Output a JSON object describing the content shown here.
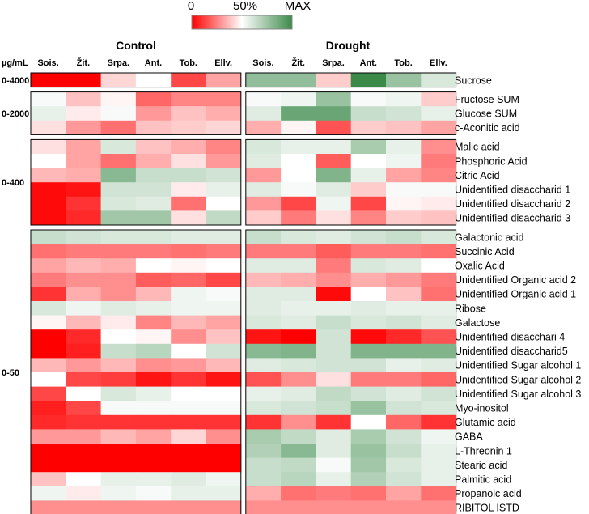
{
  "chart_data": {
    "type": "heatmap",
    "legend": {
      "labels": [
        "0",
        "50%",
        "MAX"
      ],
      "colors": [
        "#ff0000",
        "#ffffff",
        "#3b8a4a"
      ]
    },
    "unit_label": "µg/mL",
    "groups": [
      {
        "name": "Control",
        "columns": [
          "Sois.",
          "Žit.",
          "Srpa.",
          "Ant.",
          "Tob.",
          "Ellv."
        ]
      },
      {
        "name": "Drought",
        "columns": [
          "Sois.",
          "Žit.",
          "Srpa.",
          "Ant.",
          "Tob.",
          "Ellv."
        ]
      }
    ],
    "value_scale": "0 = minimum (red), 50 = mid (white), 100 = maximum (green)",
    "blocks": [
      {
        "range": "0-4000",
        "rows": [
          {
            "label": "Sucrose",
            "values": [
              0,
              0,
              42,
              50,
              14,
              32,
              78,
              78,
              40,
              100,
              76,
              60
            ]
          }
        ]
      },
      {
        "range": "0-2000",
        "rows": [
          {
            "label": "Fructose SUM",
            "values": [
              52,
              38,
              48,
              20,
              26,
              26,
              52,
              54,
              76,
              52,
              54,
              40
            ]
          },
          {
            "label": "Glucose SUM",
            "values": [
              56,
              46,
              52,
              30,
              38,
              34,
              58,
              88,
              88,
              64,
              62,
              56
            ]
          },
          {
            "label": "c-Aconitic acid",
            "values": [
              44,
              30,
              22,
              38,
              40,
              42,
              34,
              48,
              16,
              40,
              38,
              32
            ]
          }
        ]
      },
      {
        "range": "0-400",
        "rows": [
          {
            "label": "Malic acid",
            "values": [
              44,
              32,
              60,
              38,
              34,
              26,
              60,
              56,
              56,
              72,
              56,
              28
            ]
          },
          {
            "label": "Phosphoric Acid",
            "values": [
              50,
              32,
              22,
              34,
              44,
              30,
              58,
              50,
              18,
              50,
              54,
              24
            ]
          },
          {
            "label": "Citric Acid",
            "values": [
              36,
              34,
              80,
              64,
              64,
              62,
              30,
              50,
              82,
              56,
              32,
              26
            ]
          },
          {
            "label": "Unidentified disaccharid 1",
            "values": [
              2,
              4,
              62,
              62,
              46,
              56,
              58,
              52,
              58,
              40,
              52,
              52
            ]
          },
          {
            "label": "Unidentified disaccharid 2",
            "values": [
              2,
              10,
              60,
              58,
              22,
              50,
              30,
              14,
              54,
              14,
              48,
              46
            ]
          },
          {
            "label": "Unidentified disaccharid 3",
            "values": [
              2,
              8,
              74,
              74,
              44,
              66,
              40,
              24,
              44,
              26,
              40,
              38
            ]
          }
        ]
      },
      {
        "range": "0-50",
        "rows": [
          {
            "label": "Galactonic acid",
            "values": [
              64,
              62,
              60,
              60,
              58,
              58,
              64,
              60,
              58,
              62,
              64,
              60
            ]
          },
          {
            "label": "Succinic Acid",
            "values": [
              22,
              24,
              24,
              24,
              22,
              24,
              24,
              24,
              18,
              24,
              24,
              22
            ]
          },
          {
            "label": "Oxalic Acid",
            "values": [
              32,
              36,
              34,
              50,
              48,
              50,
              58,
              58,
              24,
              60,
              58,
              50
            ]
          },
          {
            "label": "Unidentified Organic acid 2",
            "values": [
              24,
              28,
              28,
              18,
              20,
              14,
              36,
              34,
              28,
              34,
              30,
              24
            ]
          },
          {
            "label": "Unidentified Organic acid 1",
            "values": [
              10,
              34,
              28,
              36,
              54,
              52,
              58,
              58,
              2,
              50,
              38,
              22
            ]
          },
          {
            "label": "Ribose",
            "values": [
              60,
              54,
              58,
              56,
              54,
              54,
              58,
              56,
              56,
              58,
              56,
              56
            ]
          },
          {
            "label": "Galactose",
            "values": [
              48,
              36,
              46,
              26,
              36,
              32,
              60,
              58,
              64,
              60,
              62,
              58
            ]
          },
          {
            "label": "Unidentified disacchari 4",
            "values": [
              0,
              8,
              50,
              48,
              28,
              38,
              4,
              0,
              62,
              2,
              8,
              16
            ]
          },
          {
            "label": "Unidentified disaccharid5",
            "values": [
              0,
              6,
              64,
              68,
              50,
              62,
              80,
              82,
              62,
              82,
              82,
              82
            ]
          },
          {
            "label": "Unidentified Sugar alcohol 1",
            "values": [
              36,
              30,
              36,
              28,
              30,
              36,
              58,
              60,
              62,
              62,
              56,
              58
            ]
          },
          {
            "label": "Unidentified Sugar alcohol 2",
            "values": [
              50,
              14,
              12,
              4,
              10,
              4,
              16,
              28,
              44,
              24,
              24,
              20
            ]
          },
          {
            "label": "Unidentified Sugar alcohol 3",
            "values": [
              14,
              50,
              60,
              56,
              50,
              50,
              56,
              58,
              66,
              62,
              58,
              62
            ]
          },
          {
            "label": "Myo-inositol",
            "values": [
              6,
              14,
              52,
              52,
              52,
              52,
              60,
              62,
              64,
              76,
              62,
              60
            ]
          },
          {
            "label": "Glutamic acid",
            "values": [
              8,
              10,
              10,
              10,
              10,
              10,
              10,
              28,
              10,
              50,
              20,
              10
            ]
          },
          {
            "label": "GABA",
            "values": [
              30,
              30,
              36,
              32,
              42,
              28,
              72,
              66,
              58,
              72,
              62,
              54
            ]
          },
          {
            "label": "L-Threonin 1",
            "values": [
              0,
              0,
              0,
              0,
              0,
              0,
              70,
              80,
              58,
              76,
              64,
              56
            ]
          },
          {
            "label": "Stearic acid",
            "values": [
              0,
              0,
              0,
              0,
              0,
              0,
              64,
              66,
              52,
              74,
              60,
              56
            ]
          },
          {
            "label": "Palmitic acid",
            "values": [
              38,
              50,
              56,
              56,
              58,
              54,
              64,
              68,
              56,
              70,
              62,
              56
            ]
          },
          {
            "label": "Propanoic acid",
            "values": [
              54,
              46,
              54,
              52,
              56,
              56,
              34,
              22,
              24,
              22,
              32,
              22
            ]
          },
          {
            "label": "RIBITOL ISTD",
            "values": [
              28,
              28,
              28,
              28,
              28,
              28,
              28,
              28,
              28,
              28,
              28,
              28
            ]
          }
        ]
      }
    ]
  }
}
